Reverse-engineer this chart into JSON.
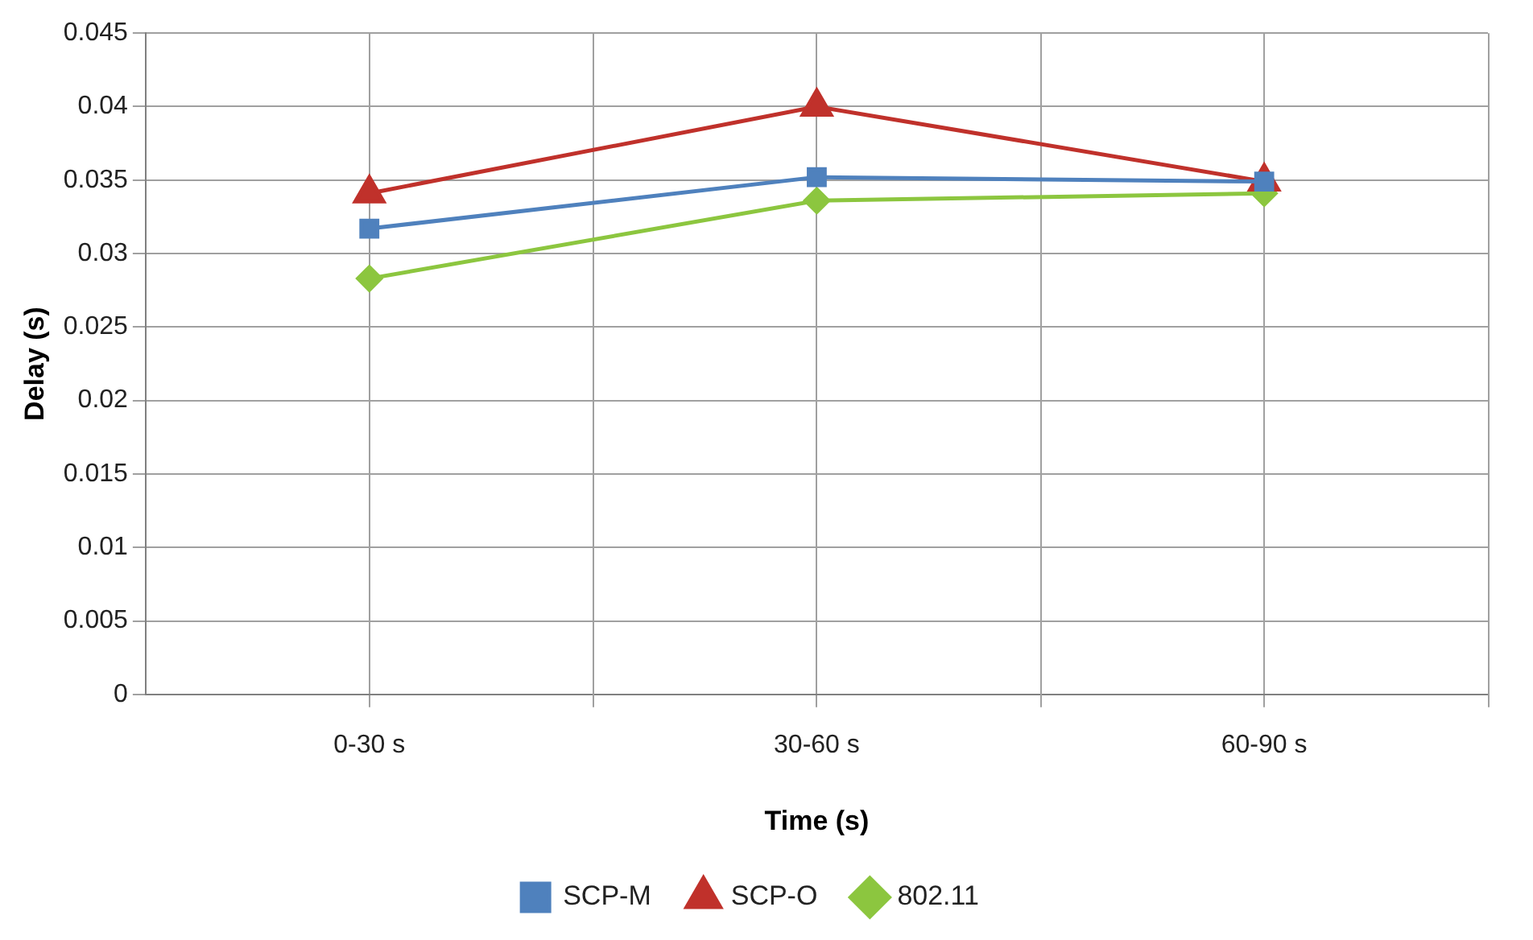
{
  "chart_data": {
    "type": "line",
    "xlabel": "Time (s)",
    "ylabel": "Delay (s)",
    "categories": [
      "0-30 s",
      "30-60 s",
      "60-90 s"
    ],
    "series": [
      {
        "name": "SCP-M",
        "color": "#4f81bd",
        "marker": "square",
        "values": [
          0.0317,
          0.0352,
          0.0349
        ]
      },
      {
        "name": "SCP-O",
        "color": "#c0312b",
        "marker": "triangle",
        "values": [
          0.0341,
          0.04,
          0.0349
        ]
      },
      {
        "name": "802.11",
        "color": "#8cc63f",
        "marker": "diamond",
        "values": [
          0.0283,
          0.0336,
          0.0341
        ]
      }
    ],
    "ylim": [
      0,
      0.045
    ],
    "yticks": [
      0,
      0.005,
      0.01,
      0.015,
      0.02,
      0.025,
      0.03,
      0.035,
      0.04,
      0.045
    ],
    "grid": true,
    "legend": "bottom",
    "line_style": "solid"
  }
}
